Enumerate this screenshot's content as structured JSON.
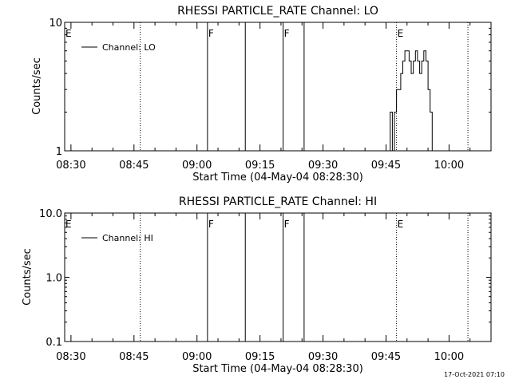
{
  "chart_data": [
    {
      "type": "line",
      "title": "RHESSI PARTICLE_RATE Channel: LO",
      "xlabel": "Start Time (04-May-04 08:28:30)",
      "ylabel": "Counts/sec",
      "yscale": "log",
      "ylim": [
        1,
        10
      ],
      "y_ticks": [
        "1",
        "10"
      ],
      "x_ticks": [
        "08:30",
        "08:45",
        "09:00",
        "09:15",
        "09:30",
        "09:45",
        "10:00"
      ],
      "xlim": [
        "08:28:30",
        "10:10:00"
      ],
      "legend": {
        "placement": "top-left",
        "entries": [
          "Channel: LO"
        ]
      },
      "events": [
        {
          "label": "E",
          "time": "08:28:30",
          "style": "dotted"
        },
        {
          "label": "",
          "time": "08:46:30",
          "style": "dotted"
        },
        {
          "label": "F",
          "time": "09:02:30",
          "style": "solid"
        },
        {
          "label": "",
          "time": "09:11:30",
          "style": "solid"
        },
        {
          "label": "F",
          "time": "09:20:30",
          "style": "solid"
        },
        {
          "label": "",
          "time": "09:25:30",
          "style": "solid"
        },
        {
          "label": "E",
          "time": "09:47:30",
          "style": "dotted"
        },
        {
          "label": "",
          "time": "10:04:30",
          "style": "dotted"
        }
      ],
      "series": [
        {
          "name": "Channel: LO",
          "x": [
            "09:46:00",
            "09:46:00",
            "09:46:30",
            "09:46:30",
            "09:47:00",
            "09:47:00",
            "09:47:30",
            "09:47:30",
            "09:48:00",
            "09:48:00",
            "09:48:30",
            "09:48:30",
            "09:49:00",
            "09:49:00",
            "09:49:30",
            "09:49:30",
            "09:50:00",
            "09:50:00",
            "09:50:30",
            "09:50:30",
            "09:51:00",
            "09:51:00",
            "09:51:30",
            "09:51:30",
            "09:52:00",
            "09:52:00",
            "09:52:30",
            "09:52:30",
            "09:53:00",
            "09:53:00",
            "09:53:30",
            "09:53:30",
            "09:54:00",
            "09:54:00",
            "09:54:30",
            "09:54:30",
            "09:55:00",
            "09:55:00",
            "09:55:30",
            "09:55:30",
            "09:56:00",
            "09:56:00",
            "09:56:30",
            "09:56:30"
          ],
          "values": [
            1,
            2,
            2,
            1,
            1,
            2,
            2,
            3,
            3,
            3,
            3,
            4,
            4,
            5,
            5,
            6,
            6,
            6,
            6,
            5,
            5,
            4,
            4,
            5,
            5,
            6,
            6,
            5,
            5,
            4,
            4,
            5,
            5,
            6,
            6,
            5,
            5,
            3,
            3,
            2,
            2,
            1,
            1,
            1
          ]
        }
      ]
    },
    {
      "type": "line",
      "title": "RHESSI PARTICLE_RATE Channel: HI",
      "xlabel": "Start Time (04-May-04 08:28:30)",
      "ylabel": "Counts/sec",
      "yscale": "log",
      "ylim": [
        0.1,
        10
      ],
      "y_ticks": [
        "0.1",
        "1.0",
        "10.0"
      ],
      "x_ticks": [
        "08:30",
        "08:45",
        "09:00",
        "09:15",
        "09:30",
        "09:45",
        "10:00"
      ],
      "xlim": [
        "08:28:30",
        "10:10:00"
      ],
      "legend": {
        "placement": "top-left",
        "entries": [
          "Channel: HI"
        ]
      },
      "events": [
        {
          "label": "E",
          "time": "08:28:30",
          "style": "dotted"
        },
        {
          "label": "",
          "time": "08:46:30",
          "style": "dotted"
        },
        {
          "label": "F",
          "time": "09:02:30",
          "style": "solid"
        },
        {
          "label": "",
          "time": "09:11:30",
          "style": "solid"
        },
        {
          "label": "F",
          "time": "09:20:30",
          "style": "solid"
        },
        {
          "label": "",
          "time": "09:25:30",
          "style": "solid"
        },
        {
          "label": "E",
          "time": "09:47:30",
          "style": "dotted"
        },
        {
          "label": "",
          "time": "10:04:30",
          "style": "dotted"
        }
      ],
      "series": [
        {
          "name": "Channel: HI",
          "x": [],
          "values": []
        }
      ]
    }
  ],
  "stamp": "17-Oct-2021 07:10"
}
